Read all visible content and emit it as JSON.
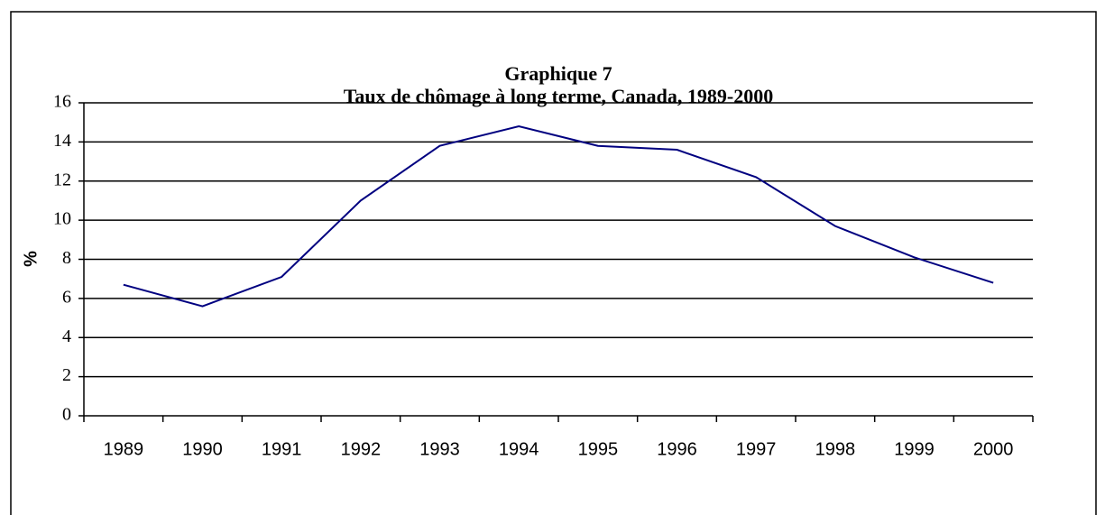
{
  "chart_data": {
    "type": "line",
    "title": "Graphique 7",
    "subtitle": "Taux de chômage à long terme, Canada, 1989-2000",
    "y_label": "%",
    "categories": [
      "1989",
      "1990",
      "1991",
      "1992",
      "1993",
      "1994",
      "1995",
      "1996",
      "1997",
      "1998",
      "1999",
      "2000"
    ],
    "series": [
      {
        "name": "Taux de chômage à long terme",
        "color": "#000080",
        "values": [
          6.7,
          5.6,
          7.1,
          11.0,
          13.8,
          14.8,
          13.8,
          13.6,
          12.2,
          9.7,
          8.1,
          6.8
        ]
      }
    ],
    "ylim": [
      0,
      16
    ],
    "yticks": [
      0,
      2,
      4,
      6,
      8,
      10,
      12,
      14,
      16
    ],
    "grid": true
  }
}
